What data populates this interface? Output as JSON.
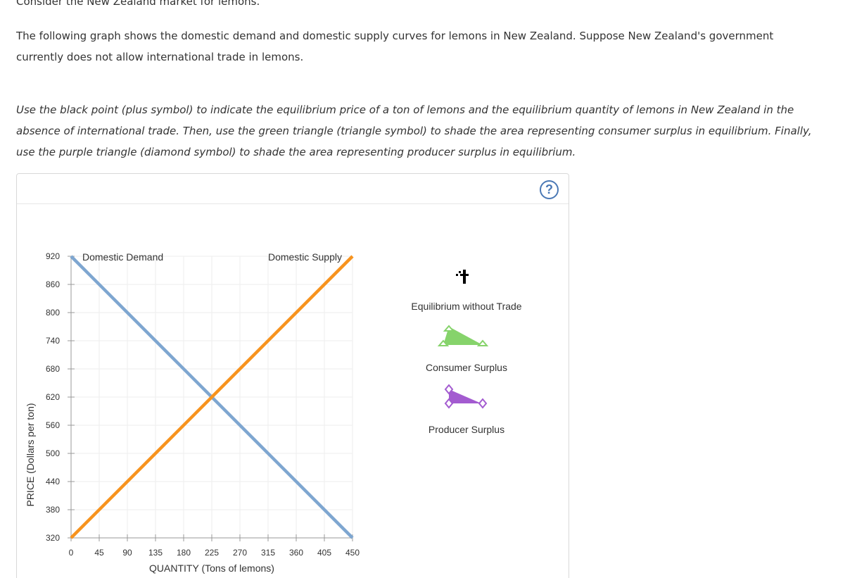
{
  "intro": "Consider the New Zealand market for lemons.",
  "description": "The following graph shows the domestic demand and domestic supply curves for lemons in New Zealand. Suppose New Zealand's government currently does not allow international trade in lemons.",
  "instructions": "Use the black point (plus symbol) to indicate the equilibrium price of a ton of lemons and the equilibrium quantity of lemons in New Zealand in the absence of international trade. Then, use the green triangle (triangle symbol) to shade the area representing consumer surplus in equilibrium. Finally, use the purple triangle (diamond symbol) to shade the area representing producer surplus in equilibrium.",
  "help_label": "?",
  "chart_data": {
    "type": "line",
    "xlabel": "QUANTITY (Tons of lemons)",
    "ylabel": "PRICE (Dollars per ton)",
    "xlim": [
      0,
      450
    ],
    "ylim": [
      320,
      920
    ],
    "x_ticks": [
      "0",
      "45",
      "90",
      "135",
      "180",
      "225",
      "270",
      "315",
      "360",
      "405",
      "450"
    ],
    "y_ticks": [
      "920",
      "860",
      "800",
      "740",
      "680",
      "620",
      "560",
      "500",
      "440",
      "380",
      "320"
    ],
    "grid": true,
    "series": [
      {
        "name": "Domestic Demand",
        "color": "#7ea6d0",
        "points": [
          [
            0,
            920
          ],
          [
            450,
            320
          ]
        ]
      },
      {
        "name": "Domestic Supply",
        "color": "#f7931e",
        "points": [
          [
            0,
            320
          ],
          [
            450,
            920
          ]
        ]
      }
    ]
  },
  "palette": {
    "equilibrium": "#000000",
    "consumer_surplus": "#86d36b",
    "producer_surplus": "#a35bd0"
  },
  "tools": {
    "equilibrium_label": "Equilibrium without Trade",
    "consumer_label": "Consumer Surplus",
    "producer_label": "Producer Surplus"
  }
}
